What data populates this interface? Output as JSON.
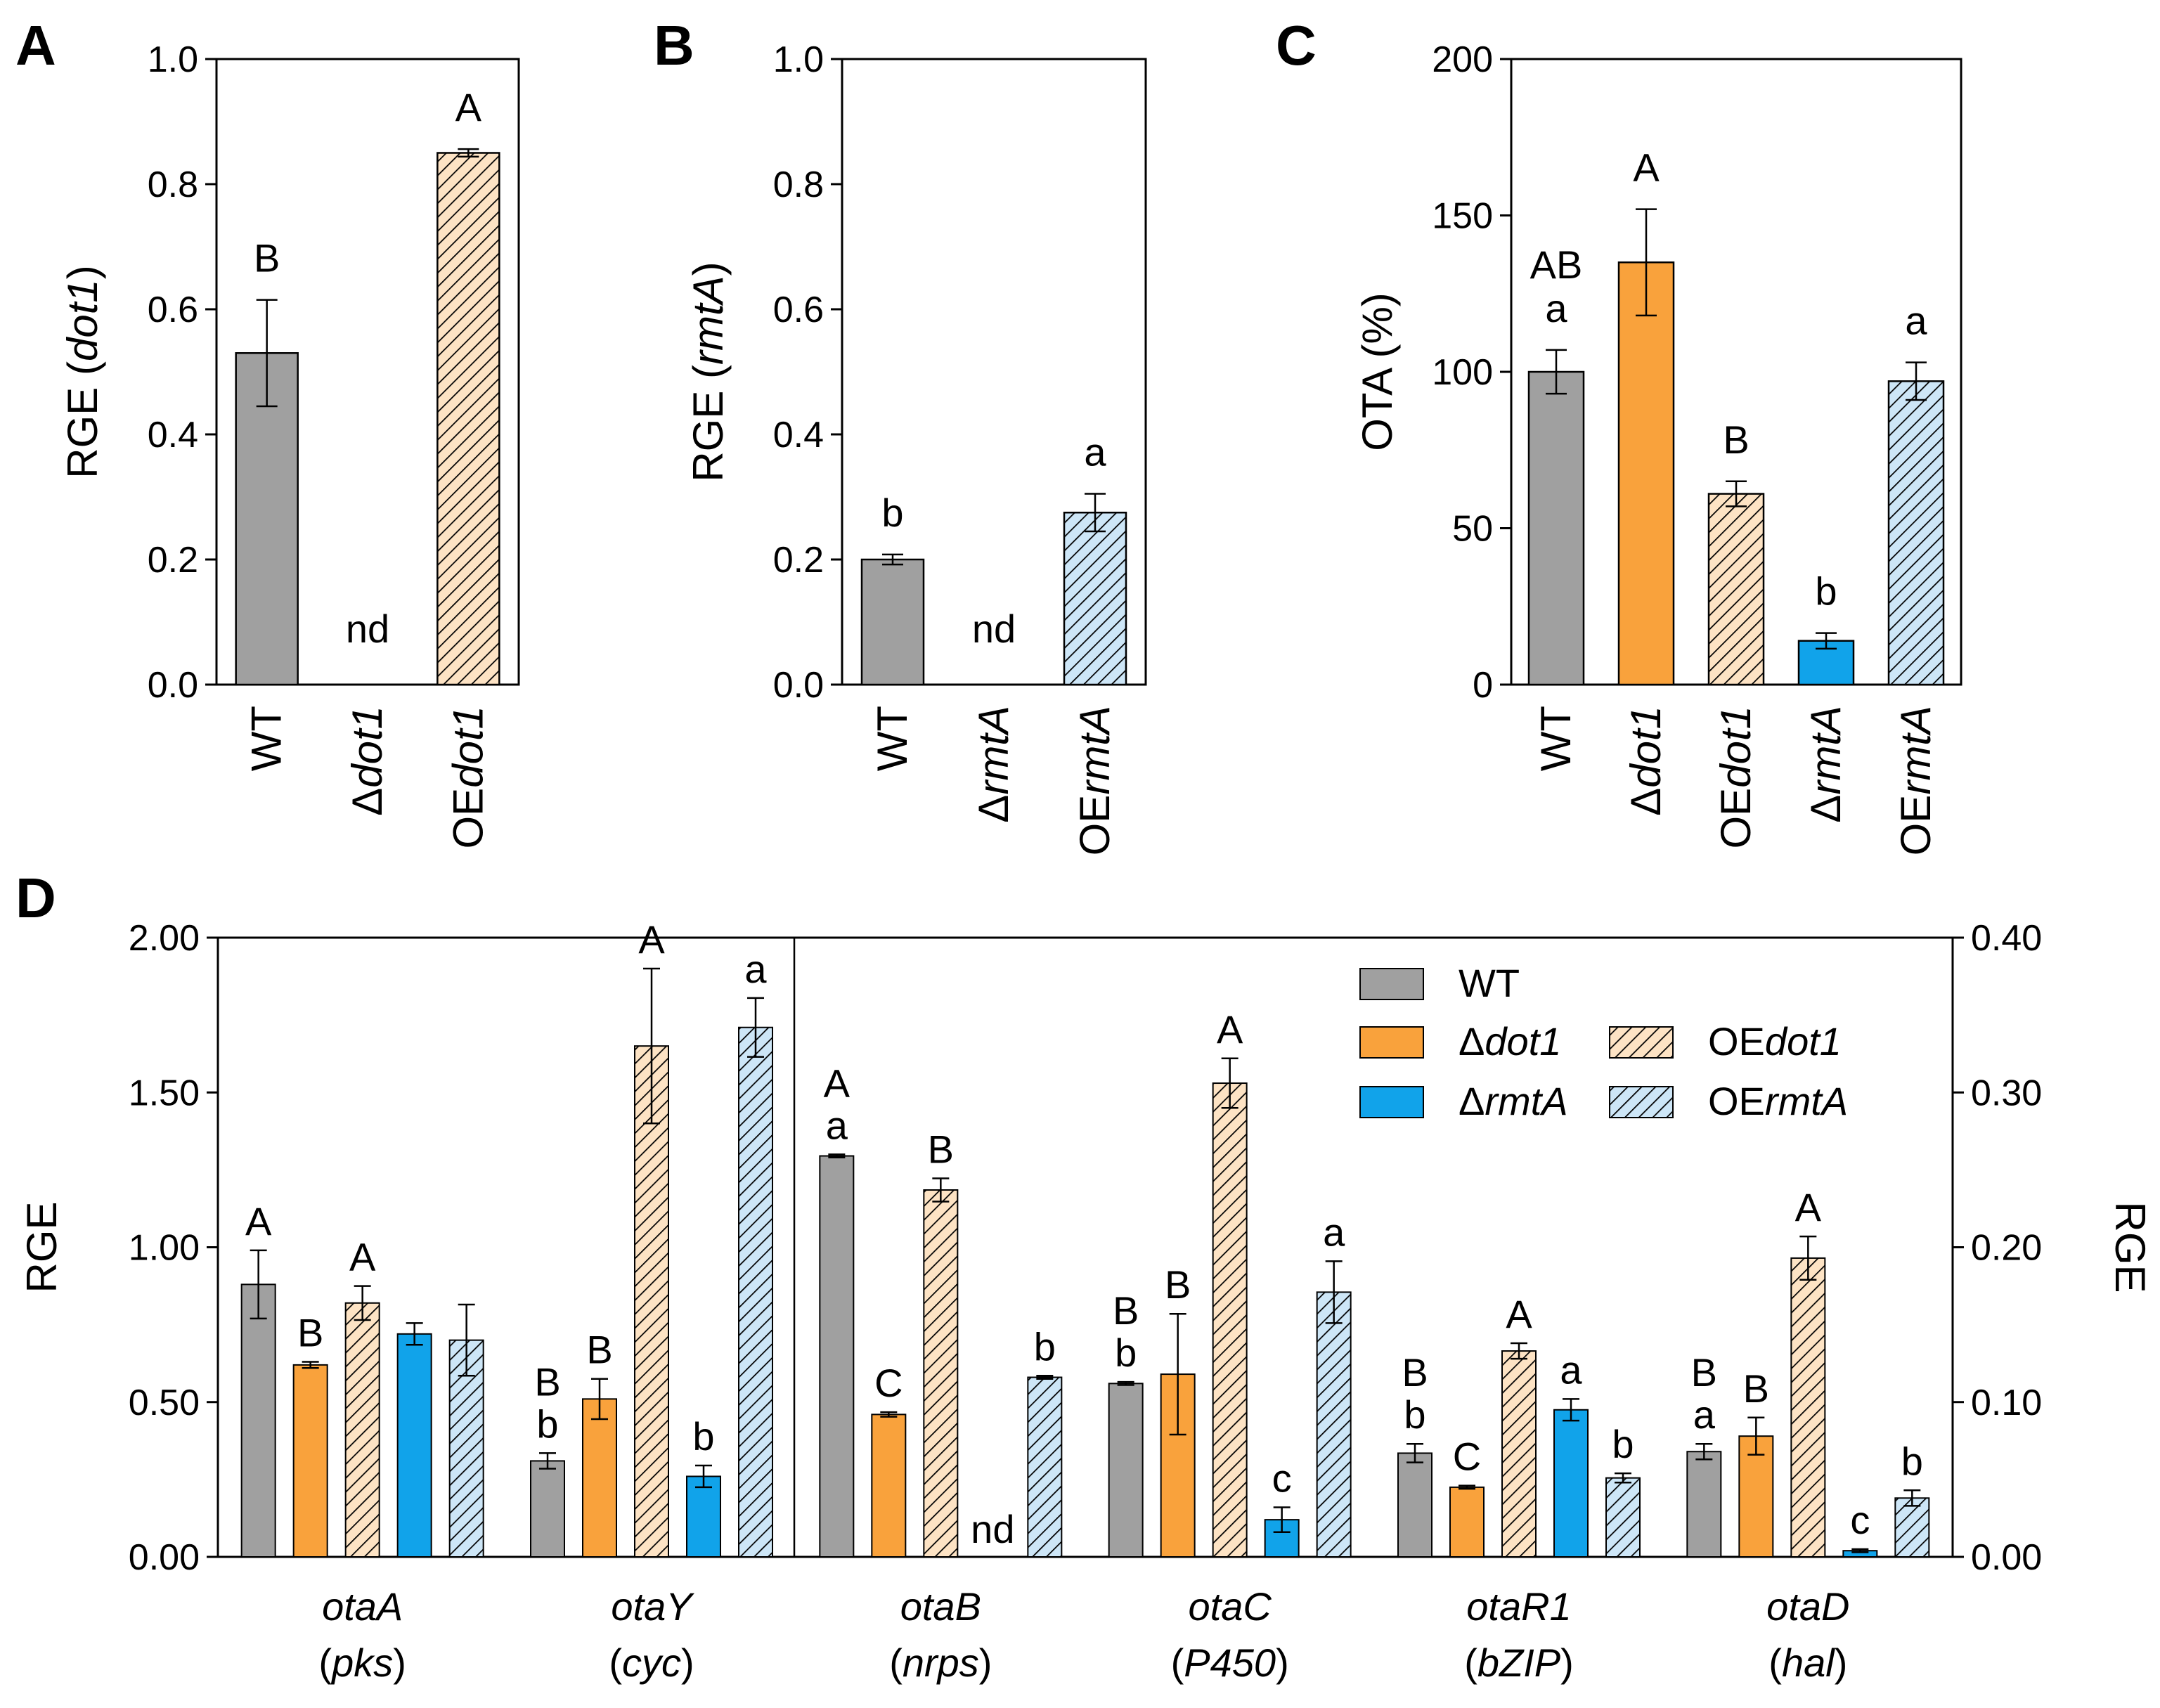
{
  "colors": {
    "WT": "#a0a0a0",
    "dot1": "#f9a23c",
    "OEdot1": "#fde3c4",
    "rmtA": "#11a3ea",
    "OErmtA": "#cde6f7",
    "frame": "#000000"
  },
  "panels": {
    "A": {
      "label": "A"
    },
    "B": {
      "label": "B"
    },
    "C": {
      "label": "C"
    },
    "D": {
      "label": "D"
    }
  },
  "chart_data": [
    {
      "panel": "A",
      "type": "bar",
      "ylabel_pre": "RGE (",
      "ylabel_it": "dot1",
      "ylabel_post": ")",
      "ylim": [
        0,
        1.0
      ],
      "yticks": [
        "0.0",
        "0.2",
        "0.4",
        "0.6",
        "0.8",
        "1.0"
      ],
      "categories": [
        {
          "pre": "WT",
          "it": ""
        },
        {
          "pre": "Δ",
          "it": "dot1"
        },
        {
          "pre": "OE",
          "it": "dot1"
        }
      ],
      "series_keys": [
        "WT",
        "dot1",
        "OEdot1"
      ],
      "values": [
        0.53,
        null,
        0.85
      ],
      "errors": [
        0.085,
        null,
        0.006
      ],
      "letters": [
        [
          "B"
        ],
        [
          "nd"
        ],
        [
          "A"
        ]
      ]
    },
    {
      "panel": "B",
      "type": "bar",
      "ylabel_pre": "RGE (",
      "ylabel_it": "rmtA",
      "ylabel_post": ")",
      "ylim": [
        0,
        1.0
      ],
      "yticks": [
        "0.0",
        "0.2",
        "0.4",
        "0.6",
        "0.8",
        "1.0"
      ],
      "categories": [
        {
          "pre": "WT",
          "it": ""
        },
        {
          "pre": "Δ",
          "it": "rmtA"
        },
        {
          "pre": "OE",
          "it": "rmtA"
        }
      ],
      "series_keys": [
        "WT",
        "rmtA",
        "OErmtA"
      ],
      "values": [
        0.2,
        null,
        0.275
      ],
      "errors": [
        0.008,
        null,
        0.03
      ],
      "letters": [
        [
          "b"
        ],
        [
          "nd"
        ],
        [
          "a"
        ]
      ]
    },
    {
      "panel": "C",
      "type": "bar",
      "ylabel_pre": "OTA (%)",
      "ylabel_it": "",
      "ylabel_post": "",
      "ylim": [
        0,
        200
      ],
      "yticks": [
        "0",
        "50",
        "100",
        "150",
        "200"
      ],
      "categories": [
        {
          "pre": "WT",
          "it": ""
        },
        {
          "pre": "Δ",
          "it": "dot1"
        },
        {
          "pre": "OE",
          "it": "dot1"
        },
        {
          "pre": "Δ",
          "it": "rmtA"
        },
        {
          "pre": "OE",
          "it": "rmtA"
        }
      ],
      "series_keys": [
        "WT",
        "dot1",
        "OEdot1",
        "rmtA",
        "OErmtA"
      ],
      "values": [
        100,
        135,
        61,
        14,
        97
      ],
      "errors": [
        7,
        17,
        4,
        2.5,
        6
      ],
      "letters": [
        [
          "AB",
          "a"
        ],
        [
          "A"
        ],
        [
          "B"
        ],
        [
          "b"
        ],
        [
          "a"
        ]
      ]
    },
    {
      "panel": "D",
      "type": "bar",
      "ylabel_left": "RGE",
      "ylabel_right": "RGE",
      "ylim_left": [
        0,
        2.0
      ],
      "ylim_right": [
        0,
        0.4
      ],
      "yticks_left": [
        "0.00",
        "0.50",
        "1.00",
        "1.50",
        "2.00"
      ],
      "yticks_right": [
        "0.00",
        "0.10",
        "0.20",
        "0.30",
        "0.40"
      ],
      "series": [
        {
          "key": "WT",
          "name_pre": "WT",
          "name_it": ""
        },
        {
          "key": "dot1",
          "name_pre": "Δ",
          "name_it": "dot1"
        },
        {
          "key": "OEdot1",
          "name_pre": "OE",
          "name_it": "dot1"
        },
        {
          "key": "rmtA",
          "name_pre": "Δ",
          "name_it": "rmtA"
        },
        {
          "key": "OErmtA",
          "name_pre": "OE",
          "name_it": "rmtA"
        }
      ],
      "groups": [
        {
          "gene": "otaA",
          "protein": "pks",
          "axis": "left",
          "values": [
            0.88,
            0.62,
            0.82,
            0.72,
            0.7
          ],
          "errors": [
            0.11,
            0.01,
            0.055,
            0.035,
            0.115
          ],
          "letters": [
            [
              "A"
            ],
            [
              "B"
            ],
            [
              "A"
            ],
            [],
            []
          ]
        },
        {
          "gene": "otaY",
          "protein": "cyc",
          "axis": "left",
          "values": [
            0.31,
            0.51,
            1.65,
            0.26,
            1.71
          ],
          "errors": [
            0.025,
            0.065,
            0.25,
            0.035,
            0.095
          ],
          "letters": [
            [
              "B",
              "b"
            ],
            [
              "B"
            ],
            [
              "A"
            ],
            [
              "b"
            ],
            [
              "a"
            ]
          ]
        },
        {
          "gene": "otaB",
          "protein": "nrps",
          "axis": "right",
          "values": [
            0.259,
            0.092,
            0.237,
            null,
            0.116
          ],
          "errors": [
            0.001,
            0.0015,
            0.0075,
            null,
            0.001
          ],
          "letters": [
            [
              "A",
              "a"
            ],
            [
              "C"
            ],
            [
              "B"
            ],
            [
              "nd"
            ],
            [
              "b"
            ]
          ]
        },
        {
          "gene": "otaC",
          "protein": "P450",
          "axis": "right",
          "values": [
            0.112,
            0.118,
            0.306,
            0.024,
            0.171
          ],
          "errors": [
            0.001,
            0.039,
            0.016,
            0.008,
            0.02
          ],
          "letters": [
            [
              "B",
              "b"
            ],
            [
              "B"
            ],
            [
              "A"
            ],
            [
              "c"
            ],
            [
              "a"
            ]
          ]
        },
        {
          "gene": "otaR1",
          "protein": "bZIP",
          "axis": "right",
          "values": [
            0.067,
            0.045,
            0.133,
            0.095,
            0.051
          ],
          "errors": [
            0.006,
            0.001,
            0.005,
            0.007,
            0.003
          ],
          "letters": [
            [
              "B",
              "b"
            ],
            [
              "C"
            ],
            [
              "A"
            ],
            [
              "a"
            ],
            [
              "b"
            ]
          ]
        },
        {
          "gene": "otaD",
          "protein": "hal",
          "axis": "right",
          "values": [
            0.068,
            0.078,
            0.193,
            0.004,
            0.038
          ],
          "errors": [
            0.005,
            0.012,
            0.014,
            0.001,
            0.005
          ],
          "letters": [
            [
              "B",
              "a"
            ],
            [
              "B"
            ],
            [
              "A"
            ],
            [
              "c"
            ],
            [
              "b"
            ]
          ]
        }
      ]
    }
  ]
}
